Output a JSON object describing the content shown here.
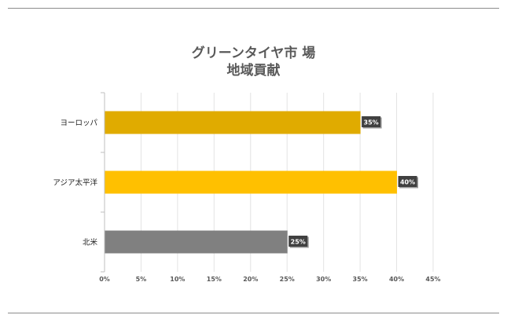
{
  "chart_data": {
    "type": "bar",
    "orientation": "horizontal",
    "title_line1": "グリーンタイヤ市 場",
    "title_line2": "地域貢献",
    "categories": [
      "ヨーロッパ",
      "アジア太平洋",
      "北米"
    ],
    "values": [
      35,
      40,
      25
    ],
    "data_labels": [
      "35%",
      "40%",
      "25%"
    ],
    "bar_colors": [
      "#e0ab00",
      "#ffc000",
      "#808080"
    ],
    "x_ticks": [
      "0%",
      "5%",
      "10%",
      "15%",
      "20%",
      "25%",
      "30%",
      "35%",
      "40%",
      "45%"
    ],
    "xlim": [
      0,
      45
    ],
    "grid": true,
    "legend": "none"
  }
}
